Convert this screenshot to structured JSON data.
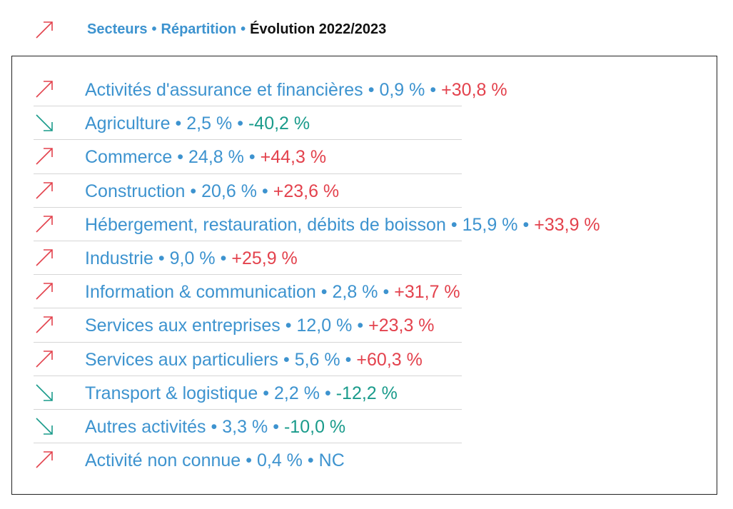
{
  "colors": {
    "accent": "#3d93cf",
    "up": "#e3424d",
    "down": "#1a9b8b"
  },
  "breadcrumb": {
    "items": [
      {
        "label": "Secteurs"
      },
      {
        "label": "Répartition"
      },
      {
        "label": "Évolution 2022/2023"
      }
    ],
    "separator": "•"
  },
  "sectors": [
    {
      "name": "Activités d'assurance et financières",
      "share": "0,9 %",
      "change": "+30,8 %",
      "trend": "up"
    },
    {
      "name": "Agriculture",
      "share": "2,5 %",
      "change": "-40,2 %",
      "trend": "down"
    },
    {
      "name": "Commerce",
      "share": "24,8 %",
      "change": "+44,3 %",
      "trend": "up"
    },
    {
      "name": "Construction",
      "share": "20,6 %",
      "change": "+23,6 %",
      "trend": "up"
    },
    {
      "name": "Hébergement, restauration, débits de boisson",
      "share": "15,9 %",
      "change": "+33,9 %",
      "trend": "up"
    },
    {
      "name": "Industrie",
      "share": "9,0 %",
      "change": "+25,9 %",
      "trend": "up"
    },
    {
      "name": "Information & communication",
      "share": "2,8 %",
      "change": "+31,7 %",
      "trend": "up"
    },
    {
      "name": "Services aux entreprises",
      "share": "12,0 %",
      "change": "+23,3 %",
      "trend": "up"
    },
    {
      "name": "Services aux particuliers",
      "share": "5,6 %",
      "change": "+60,3 %",
      "trend": "up"
    },
    {
      "name": "Transport & logistique",
      "share": "2,2 %",
      "change": "-12,2 %",
      "trend": "down"
    },
    {
      "name": "Autres activités",
      "share": "3,3 %",
      "change": "-10,0 %",
      "trend": "down"
    },
    {
      "name": "Activité non connue",
      "share": "0,4 %",
      "change": "NC",
      "trend": "up"
    }
  ]
}
